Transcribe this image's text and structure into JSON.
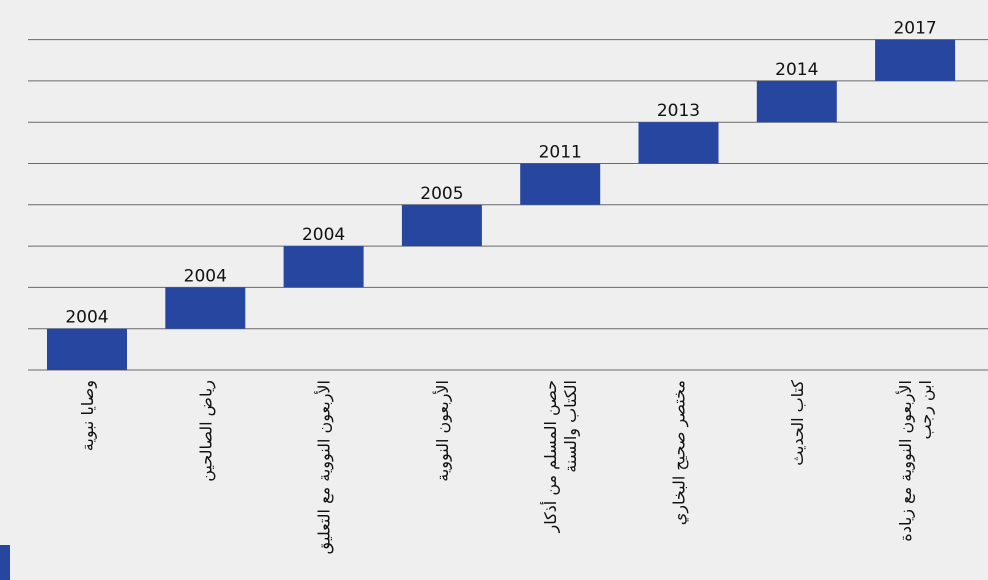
{
  "steps": [
    {
      "year": 2004,
      "label": [
        "وصايا نبوية"
      ]
    },
    {
      "year": 2004,
      "label": [
        "رياض الصالحين"
      ]
    },
    {
      "year": 2004,
      "label": [
        "الأربعون النووية مع التعليق"
      ]
    },
    {
      "year": 2005,
      "label": [
        "الأربعون النووية"
      ]
    },
    {
      "year": 2011,
      "label": [
        "حصن المسلم من أذكار",
        "الكتاب والسنة"
      ]
    },
    {
      "year": 2013,
      "label": [
        "مختصر صحيح البخاري"
      ]
    },
    {
      "year": 2014,
      "label": [
        "كتاب الحديث"
      ]
    },
    {
      "year": 2017,
      "label": [
        "الأربعون النووية مع زيادة",
        "ابن رجب"
      ]
    }
  ]
}
